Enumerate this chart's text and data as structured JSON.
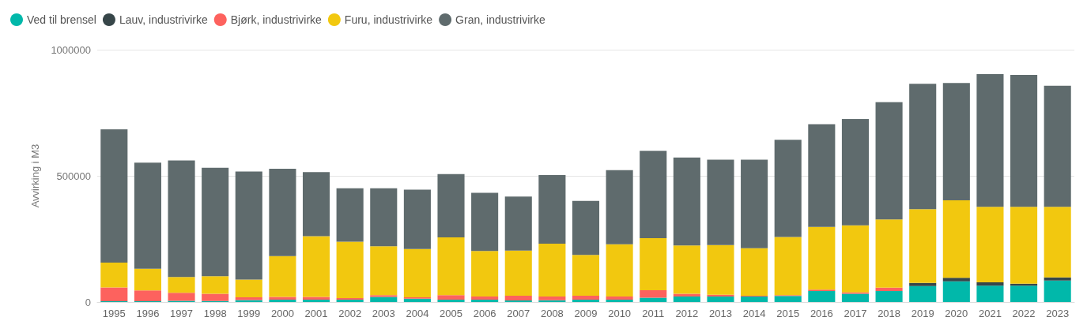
{
  "chart_data": {
    "type": "bar",
    "stacked": true,
    "ylabel": "Avvirking i M3",
    "categories": [
      "1995",
      "1996",
      "1997",
      "1998",
      "1999",
      "2000",
      "2001",
      "2002",
      "2003",
      "2004",
      "2005",
      "2006",
      "2007",
      "2008",
      "2009",
      "2010",
      "2011",
      "2012",
      "2013",
      "2014",
      "2015",
      "2016",
      "2017",
      "2018",
      "2019",
      "2020",
      "2021",
      "2022",
      "2023"
    ],
    "series": [
      {
        "name": "Ved til brensel",
        "color": "#01b8aa",
        "values": [
          3000,
          3000,
          5000,
          4000,
          8000,
          9000,
          9000,
          9000,
          20000,
          13000,
          9000,
          9000,
          6000,
          7000,
          9000,
          9000,
          17000,
          22000,
          22000,
          22000,
          24000,
          44000,
          33000,
          44000,
          63000,
          82000,
          65000,
          65000,
          85000
        ]
      },
      {
        "name": "Lauv, industrivirke",
        "color": "#374649",
        "values": [
          0,
          0,
          0,
          0,
          0,
          0,
          0,
          0,
          0,
          0,
          0,
          0,
          0,
          0,
          0,
          0,
          0,
          0,
          0,
          0,
          0,
          0,
          0,
          0,
          13000,
          14000,
          13000,
          8000,
          13000
        ]
      },
      {
        "name": "Bjørk, industrivirke",
        "color": "#fd625e",
        "values": [
          55000,
          43000,
          32000,
          29000,
          11000,
          11000,
          11000,
          7000,
          7000,
          6000,
          18000,
          13000,
          19000,
          15000,
          16000,
          13000,
          30000,
          11000,
          7000,
          3000,
          3000,
          5000,
          5000,
          13000,
          0,
          0,
          0,
          0,
          0
        ]
      },
      {
        "name": "Furu, industrivirke",
        "color": "#f2c80f",
        "values": [
          98000,
          86000,
          62000,
          69000,
          70000,
          162000,
          241000,
          223000,
          194000,
          191000,
          229000,
          180000,
          179000,
          209000,
          162000,
          207000,
          206000,
          191000,
          197000,
          188000,
          231000,
          249000,
          266000,
          270000,
          292000,
          307000,
          299000,
          304000,
          279000
        ]
      },
      {
        "name": "Gran, industrivirke",
        "color": "#5f6b6d",
        "values": [
          528000,
          420000,
          462000,
          430000,
          428000,
          346000,
          254000,
          212000,
          230000,
          235000,
          251000,
          231000,
          214000,
          272000,
          214000,
          294000,
          346000,
          349000,
          338000,
          351000,
          385000,
          407000,
          421000,
          465000,
          497000,
          465000,
          526000,
          523000,
          480000
        ]
      }
    ],
    "ylim": [
      0,
      1000000
    ],
    "yticks": [
      0,
      500000,
      1000000
    ],
    "grid": "y",
    "legend": "top left"
  }
}
